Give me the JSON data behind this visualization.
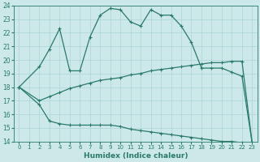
{
  "xlabel": "Humidex (Indice chaleur)",
  "ylabel": "",
  "xlim": [
    -0.5,
    23.5
  ],
  "ylim": [
    14,
    24
  ],
  "yticks": [
    14,
    15,
    16,
    17,
    18,
    19,
    20,
    21,
    22,
    23,
    24
  ],
  "xticks": [
    0,
    1,
    2,
    3,
    4,
    5,
    6,
    7,
    8,
    9,
    10,
    11,
    12,
    13,
    14,
    15,
    16,
    17,
    18,
    19,
    20,
    21,
    22,
    23
  ],
  "bg_color": "#cde8e8",
  "line_color": "#2a7a6a",
  "grid_color": "#b0d8d8",
  "upper_x": [
    0,
    2,
    3,
    4,
    5,
    6,
    7,
    8,
    9,
    10,
    11,
    12,
    13,
    14,
    15,
    16,
    17,
    18,
    19,
    20,
    21,
    22,
    23
  ],
  "upper_y": [
    18.0,
    19.5,
    20.8,
    22.3,
    19.2,
    19.2,
    21.7,
    23.3,
    23.8,
    23.7,
    22.8,
    22.5,
    23.7,
    23.3,
    23.3,
    22.5,
    21.3,
    19.4,
    19.4,
    19.4,
    19.1,
    18.8,
    13.9
  ],
  "middle_x": [
    0,
    2,
    3,
    4,
    5,
    6,
    7,
    8,
    9,
    10,
    11,
    12,
    13,
    14,
    15,
    16,
    17,
    18,
    19,
    20,
    21,
    22,
    23
  ],
  "middle_y": [
    18.0,
    17.0,
    17.3,
    17.6,
    17.9,
    18.1,
    18.3,
    18.5,
    18.6,
    18.7,
    18.9,
    19.0,
    19.2,
    19.3,
    19.4,
    19.5,
    19.6,
    19.7,
    19.8,
    19.8,
    19.9,
    19.9,
    13.9
  ],
  "lower_x": [
    0,
    2,
    3,
    4,
    5,
    6,
    7,
    8,
    9,
    10,
    11,
    12,
    13,
    14,
    15,
    16,
    17,
    18,
    19,
    20,
    21,
    22,
    23
  ],
  "lower_y": [
    18.0,
    16.7,
    15.5,
    15.3,
    15.2,
    15.2,
    15.2,
    15.2,
    15.2,
    15.1,
    14.9,
    14.8,
    14.7,
    14.6,
    14.5,
    14.4,
    14.3,
    14.2,
    14.1,
    14.0,
    14.0,
    13.9,
    13.9
  ]
}
